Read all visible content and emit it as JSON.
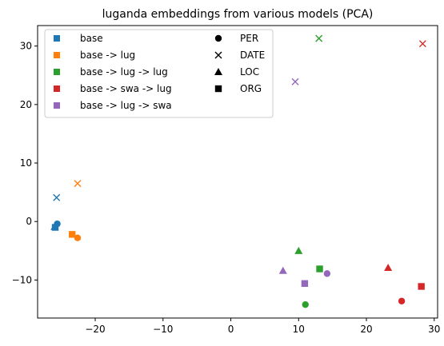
{
  "chart_data": {
    "type": "scatter",
    "title": "luganda embeddings from various models (PCA)",
    "xlabel": "",
    "ylabel": "",
    "xlim": [
      -28.5,
      30.5
    ],
    "ylim": [
      -16.5,
      33.5
    ],
    "x_ticks": [
      -20,
      -10,
      0,
      10,
      20,
      30
    ],
    "y_ticks": [
      -10,
      0,
      10,
      20,
      30
    ],
    "grid": false,
    "legend_placement": "top-left",
    "series": [
      {
        "name": "base",
        "color": "#1f77b4",
        "points": [
          {
            "label": "PER",
            "x": -25.6,
            "y": -0.4
          },
          {
            "label": "DATE",
            "x": -25.7,
            "y": 4.1
          },
          {
            "label": "LOC",
            "x": -26.0,
            "y": -0.9
          },
          {
            "label": "ORG",
            "x": -25.9,
            "y": -1.0
          }
        ]
      },
      {
        "name": "base -> lug",
        "color": "#ff7f0e",
        "points": [
          {
            "label": "PER",
            "x": -22.6,
            "y": -2.8
          },
          {
            "label": "DATE",
            "x": -22.6,
            "y": 6.5
          },
          {
            "label": "ORG",
            "x": -23.4,
            "y": -2.2
          }
        ]
      },
      {
        "name": "base -> lug -> lug",
        "color": "#2ca02c",
        "points": [
          {
            "label": "PER",
            "x": 11.0,
            "y": -14.2
          },
          {
            "label": "DATE",
            "x": 13.0,
            "y": 31.3
          },
          {
            "label": "LOC",
            "x": 10.0,
            "y": -5.0
          },
          {
            "label": "ORG",
            "x": 13.1,
            "y": -8.1
          }
        ]
      },
      {
        "name": "base -> swa -> lug",
        "color": "#d62728",
        "points": [
          {
            "label": "PER",
            "x": 25.2,
            "y": -13.6
          },
          {
            "label": "DATE",
            "x": 28.3,
            "y": 30.4
          },
          {
            "label": "LOC",
            "x": 23.2,
            "y": -7.9
          },
          {
            "label": "ORG",
            "x": 28.1,
            "y": -11.1
          }
        ]
      },
      {
        "name": "base -> lug -> swa",
        "color": "#9467bd",
        "points": [
          {
            "label": "PER",
            "x": 14.2,
            "y": -8.9
          },
          {
            "label": "DATE",
            "x": 9.5,
            "y": 23.9
          },
          {
            "label": "LOC",
            "x": 7.7,
            "y": -8.4
          },
          {
            "label": "ORG",
            "x": 10.9,
            "y": -10.6
          }
        ]
      }
    ],
    "marker_legend": [
      {
        "label": "PER",
        "marker": "circle"
      },
      {
        "label": "DATE",
        "marker": "x"
      },
      {
        "label": "LOC",
        "marker": "triangle"
      },
      {
        "label": "ORG",
        "marker": "square"
      }
    ]
  }
}
